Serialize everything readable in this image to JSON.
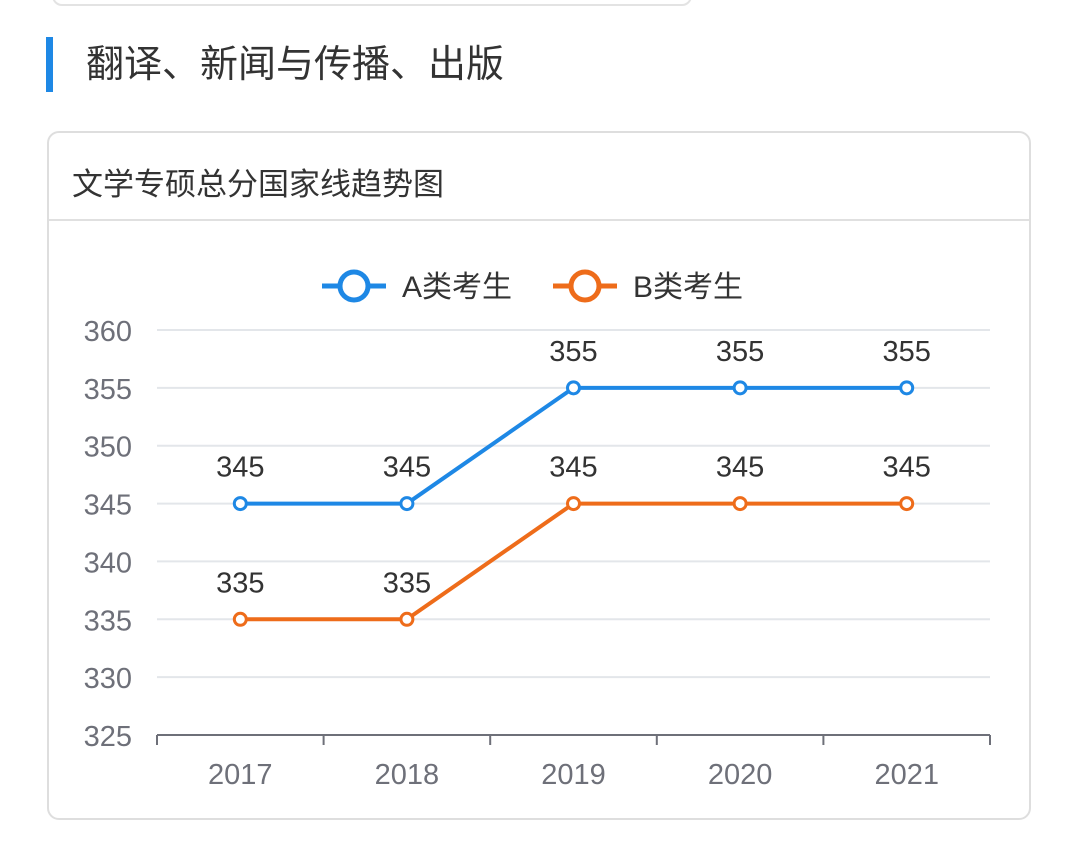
{
  "section": {
    "title": "翻译、新闻与传播、出版",
    "accent": "#1e88e5"
  },
  "card": {
    "title": "文学专硕总分国家线趋势图"
  },
  "chart_data": {
    "type": "line",
    "title": "",
    "categories": [
      "2017",
      "2018",
      "2019",
      "2020",
      "2021"
    ],
    "series": [
      {
        "name": "A类考生",
        "values": [
          345,
          345,
          355,
          355,
          355
        ],
        "color": "#1e88e5"
      },
      {
        "name": "B类考生",
        "values": [
          335,
          335,
          345,
          345,
          345
        ],
        "color": "#ee6c1a"
      }
    ],
    "ylim": [
      325,
      360
    ],
    "yticks": [
      "325",
      "330",
      "335",
      "340",
      "345",
      "350",
      "355",
      "360"
    ],
    "data_labels": true,
    "grid": true,
    "legend": "top-center"
  }
}
